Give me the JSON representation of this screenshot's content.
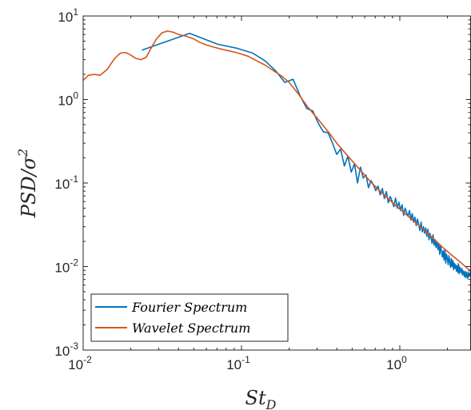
{
  "chart_data": {
    "type": "line",
    "title": "",
    "xlabel": "St",
    "xlabel_subscript": "D",
    "ylabel": "PSD/σ",
    "ylabel_superscript": "2",
    "xscale": "log",
    "yscale": "log",
    "xlim": [
      0.01,
      2.8
    ],
    "ylim": [
      0.001,
      10
    ],
    "grid": false,
    "legend_location": "bottom-left",
    "x_ticks": [
      {
        "base": "10",
        "exp": "-2",
        "value": 0.01
      },
      {
        "base": "10",
        "exp": "-1",
        "value": 0.1
      },
      {
        "base": "10",
        "exp": "0",
        "value": 1
      }
    ],
    "y_ticks": [
      {
        "base": "10",
        "exp": "-3",
        "value": 0.001
      },
      {
        "base": "10",
        "exp": "-2",
        "value": 0.01
      },
      {
        "base": "10",
        "exp": "-1",
        "value": 0.1
      },
      {
        "base": "10",
        "exp": "0",
        "value": 1
      },
      {
        "base": "10",
        "exp": "1",
        "value": 10
      }
    ],
    "series": [
      {
        "name": "Fourier Spectrum",
        "color": "#0072bd",
        "x": [
          0.0235,
          0.047,
          0.0705,
          0.094,
          0.1175,
          0.141,
          0.1645,
          0.188,
          0.2115,
          0.235,
          0.2585,
          0.282,
          0.3055,
          0.329,
          0.3525,
          0.376,
          0.3995,
          0.423,
          0.4465,
          0.47,
          0.4935,
          0.517,
          0.5405,
          0.564,
          0.5875,
          0.611,
          0.6345,
          0.658,
          0.6815,
          0.705,
          0.7285,
          0.752,
          0.7755,
          0.799,
          0.8225,
          0.846,
          0.8695,
          0.893,
          0.9165,
          0.94,
          0.9635,
          0.987,
          1.0105,
          1.034,
          1.0575,
          1.081,
          1.1045,
          1.128,
          1.1515,
          1.175,
          1.1985,
          1.222,
          1.2455,
          1.269,
          1.2925,
          1.316,
          1.3395,
          1.363,
          1.3865,
          1.41,
          1.4335,
          1.457,
          1.4805,
          1.504,
          1.5275,
          1.551,
          1.5745,
          1.598,
          1.6215,
          1.645,
          1.6685,
          1.692,
          1.7155,
          1.739,
          1.7625,
          1.786,
          1.8095,
          1.833,
          1.8565,
          1.88,
          1.9035,
          1.927,
          1.9505,
          1.974,
          1.9975,
          2.021,
          2.0445,
          2.068,
          2.0915,
          2.115,
          2.1385,
          2.162,
          2.1855,
          2.209,
          2.2325,
          2.256,
          2.2795,
          2.303,
          2.3265,
          2.35,
          2.3735,
          2.397,
          2.4205,
          2.444,
          2.4675,
          2.491,
          2.5145,
          2.538,
          2.5615,
          2.585,
          2.6085,
          2.632,
          2.6555,
          2.679,
          2.7025,
          2.726,
          2.7495,
          2.773,
          2.8
        ],
        "y": [
          3.9,
          6.2,
          4.6,
          4.1,
          3.6,
          2.9,
          2.2,
          1.6,
          1.75,
          1.1,
          0.78,
          0.73,
          0.52,
          0.41,
          0.4,
          0.3,
          0.22,
          0.255,
          0.16,
          0.21,
          0.135,
          0.17,
          0.1,
          0.155,
          0.115,
          0.125,
          0.088,
          0.107,
          0.095,
          0.081,
          0.092,
          0.072,
          0.086,
          0.065,
          0.079,
          0.058,
          0.069,
          0.061,
          0.052,
          0.066,
          0.05,
          0.059,
          0.047,
          0.055,
          0.041,
          0.05,
          0.044,
          0.04,
          0.047,
          0.036,
          0.043,
          0.034,
          0.039,
          0.031,
          0.037,
          0.032,
          0.027,
          0.034,
          0.026,
          0.03,
          0.025,
          0.029,
          0.023,
          0.028,
          0.021,
          0.025,
          0.022,
          0.019,
          0.024,
          0.018,
          0.021,
          0.017,
          0.02,
          0.016,
          0.019,
          0.014,
          0.018,
          0.015,
          0.013,
          0.0155,
          0.012,
          0.016,
          0.011,
          0.014,
          0.0125,
          0.0105,
          0.0135,
          0.0115,
          0.0098,
          0.0125,
          0.01,
          0.0118,
          0.0092,
          0.011,
          0.0095,
          0.0105,
          0.0088,
          0.0102,
          0.0085,
          0.0108,
          0.0082,
          0.0098,
          0.009,
          0.0084,
          0.0095,
          0.0079,
          0.0089,
          0.0083,
          0.0076,
          0.0088,
          0.0074,
          0.0085,
          0.0079,
          0.0072,
          0.0086,
          0.0075,
          0.0081,
          0.0078,
          0.0091
        ]
      },
      {
        "name": "Wavelet Spectrum",
        "color": "#d95319",
        "x": [
          0.01,
          0.0108,
          0.0117,
          0.0128,
          0.0142,
          0.0158,
          0.0172,
          0.0186,
          0.02,
          0.0215,
          0.0232,
          0.025,
          0.0268,
          0.029,
          0.0315,
          0.034,
          0.037,
          0.04,
          0.045,
          0.05,
          0.055,
          0.06,
          0.068,
          0.075,
          0.085,
          0.095,
          0.11,
          0.125,
          0.14,
          0.16,
          0.18,
          0.2,
          0.23,
          0.26,
          0.3,
          0.35,
          0.4,
          0.47,
          0.55,
          0.65,
          0.75,
          0.9,
          1.05,
          1.25,
          1.5,
          1.8,
          2.1,
          2.45,
          2.8
        ],
        "y": [
          1.7,
          1.95,
          2.0,
          1.95,
          2.3,
          3.1,
          3.6,
          3.65,
          3.4,
          3.1,
          3.0,
          3.2,
          4.1,
          5.3,
          6.3,
          6.6,
          6.4,
          6.0,
          5.7,
          5.3,
          4.8,
          4.5,
          4.2,
          4.0,
          3.8,
          3.6,
          3.3,
          2.9,
          2.6,
          2.2,
          1.9,
          1.6,
          1.15,
          0.83,
          0.6,
          0.42,
          0.3,
          0.21,
          0.15,
          0.105,
          0.08,
          0.058,
          0.045,
          0.034,
          0.025,
          0.018,
          0.014,
          0.011,
          0.0088
        ]
      }
    ]
  }
}
